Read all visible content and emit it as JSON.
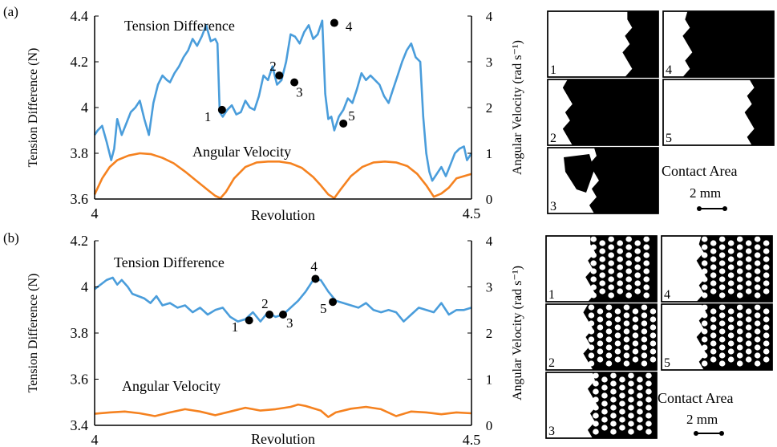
{
  "colors": {
    "tension": "#4a9ddb",
    "angular": "#f58220",
    "axis": "#000000",
    "marker": "#000000"
  },
  "panels": [
    {
      "label": "(a)",
      "xlabel": "Revolution",
      "ylabel_left": "Tension Difference (N)",
      "ylabel_right": "Angular Velocity (rad s⁻¹)",
      "xticks": [
        "4",
        "4.5"
      ],
      "yticks_left": [
        "3.6",
        "3.8",
        "4",
        "4.2",
        "4.4"
      ],
      "yticks_right": [
        "0",
        "1",
        "2",
        "3",
        "4"
      ],
      "series_labels": {
        "tension": "Tension Difference",
        "angular": "Angular Velocity"
      },
      "contact_area_title": "Contact Area",
      "scale_bar": "2 mm",
      "thumb_pattern": "solid"
    },
    {
      "label": "(b)",
      "xlabel": "Revolution",
      "ylabel_left": "Tension Difference (N)",
      "ylabel_right": "Angular Velocity (rad s⁻¹)",
      "xticks": [
        "4",
        "4.5"
      ],
      "yticks_left": [
        "3.4",
        "3.6",
        "3.8",
        "4",
        "4.2"
      ],
      "yticks_right": [
        "0",
        "1",
        "2",
        "3",
        "4"
      ],
      "series_labels": {
        "tension": "Tension Difference",
        "angular": "Angular Velocity"
      },
      "contact_area_title": "Contact Area",
      "scale_bar": "2 mm",
      "thumb_pattern": "hex"
    }
  ],
  "chart_data": [
    {
      "type": "line",
      "xlim": [
        4,
        4.5
      ],
      "ylim_left": [
        3.6,
        4.4
      ],
      "ylim_right": [
        0,
        4
      ],
      "series": [
        {
          "name": "Tension Difference",
          "axis": "left",
          "x": [
            4.0,
            4.004,
            4.01,
            4.016,
            4.022,
            4.026,
            4.03,
            4.036,
            4.042,
            4.048,
            4.054,
            4.06,
            4.066,
            4.072,
            4.078,
            4.084,
            4.09,
            4.096,
            4.1,
            4.106,
            4.112,
            4.118,
            4.124,
            4.13,
            4.136,
            4.142,
            4.148,
            4.154,
            4.16,
            4.163,
            4.166,
            4.17,
            4.176,
            4.182,
            4.188,
            4.194,
            4.2,
            4.206,
            4.212,
            4.218,
            4.224,
            4.23,
            4.236,
            4.242,
            4.248,
            4.254,
            4.26,
            4.266,
            4.272,
            4.278,
            4.284,
            4.29,
            4.296,
            4.302,
            4.306,
            4.31,
            4.314,
            4.318,
            4.324,
            4.33,
            4.336,
            4.342,
            4.348,
            4.354,
            4.36,
            4.366,
            4.372,
            4.378,
            4.384,
            4.39,
            4.396,
            4.402,
            4.408,
            4.414,
            4.42,
            4.426,
            4.432,
            4.436,
            4.44,
            4.444,
            4.448,
            4.452,
            4.456,
            4.46,
            4.466,
            4.472,
            4.478,
            4.484,
            4.49,
            4.494,
            4.5
          ],
          "y": [
            3.88,
            3.9,
            3.92,
            3.85,
            3.77,
            3.82,
            3.95,
            3.88,
            3.93,
            3.98,
            4.0,
            4.03,
            3.95,
            3.88,
            4.02,
            4.1,
            4.14,
            4.12,
            4.11,
            4.15,
            4.18,
            4.22,
            4.25,
            4.3,
            4.27,
            4.31,
            4.36,
            4.29,
            4.3,
            4.28,
            3.98,
            3.96,
            3.99,
            4.01,
            3.97,
            3.98,
            4.03,
            4.0,
            3.99,
            4.05,
            4.14,
            4.12,
            4.18,
            4.1,
            4.12,
            4.2,
            4.32,
            4.31,
            4.28,
            4.33,
            4.36,
            4.3,
            4.32,
            4.38,
            4.06,
            3.95,
            3.96,
            3.9,
            3.96,
            3.99,
            4.04,
            4.02,
            4.08,
            4.15,
            4.12,
            4.14,
            4.12,
            4.1,
            4.05,
            4.02,
            4.08,
            4.14,
            4.2,
            4.25,
            4.28,
            4.22,
            4.2,
            3.96,
            3.8,
            3.72,
            3.68,
            3.7,
            3.72,
            3.74,
            3.7,
            3.75,
            3.8,
            3.82,
            3.83,
            3.77,
            3.8
          ]
        },
        {
          "name": "Angular Velocity",
          "axis": "right",
          "x": [
            4.0,
            4.01,
            4.02,
            4.03,
            4.045,
            4.06,
            4.075,
            4.09,
            4.105,
            4.12,
            4.135,
            4.15,
            4.16,
            4.167,
            4.174,
            4.185,
            4.2,
            4.215,
            4.23,
            4.245,
            4.26,
            4.275,
            4.29,
            4.3,
            4.31,
            4.318,
            4.326,
            4.34,
            4.355,
            4.37,
            4.385,
            4.4,
            4.415,
            4.428,
            4.44,
            4.45,
            4.46,
            4.47,
            4.48,
            4.49,
            4.5
          ],
          "y": [
            0.1,
            0.45,
            0.7,
            0.85,
            0.95,
            1.0,
            0.98,
            0.9,
            0.78,
            0.6,
            0.4,
            0.2,
            0.07,
            0.02,
            0.15,
            0.45,
            0.7,
            0.8,
            0.82,
            0.82,
            0.78,
            0.68,
            0.48,
            0.3,
            0.1,
            0.02,
            0.2,
            0.5,
            0.7,
            0.8,
            0.82,
            0.8,
            0.72,
            0.55,
            0.3,
            0.05,
            0.12,
            0.25,
            0.45,
            0.5,
            0.55
          ]
        }
      ],
      "markers": [
        {
          "label": "1",
          "x": 4.169,
          "y": 3.99
        },
        {
          "label": "2",
          "x": 4.245,
          "y": 4.14
        },
        {
          "label": "3",
          "x": 4.265,
          "y": 4.11
        },
        {
          "label": "4",
          "x": 4.318,
          "y": 4.37
        },
        {
          "label": "5",
          "x": 4.33,
          "y": 3.93
        }
      ]
    },
    {
      "type": "line",
      "xlim": [
        4,
        4.5
      ],
      "ylim_left": [
        3.4,
        4.2
      ],
      "ylim_right": [
        0,
        4
      ],
      "series": [
        {
          "name": "Tension Difference",
          "axis": "left",
          "x": [
            4.0,
            4.008,
            4.016,
            4.024,
            4.03,
            4.036,
            4.044,
            4.05,
            4.058,
            4.066,
            4.074,
            4.082,
            4.09,
            4.1,
            4.11,
            4.12,
            4.13,
            4.14,
            4.15,
            4.16,
            4.17,
            4.18,
            4.19,
            4.2,
            4.21,
            4.22,
            4.23,
            4.24,
            4.25,
            4.26,
            4.27,
            4.28,
            4.29,
            4.3,
            4.31,
            4.32,
            4.33,
            4.34,
            4.35,
            4.36,
            4.37,
            4.38,
            4.39,
            4.4,
            4.41,
            4.42,
            4.43,
            4.44,
            4.45,
            4.46,
            4.47,
            4.48,
            4.49,
            4.5
          ],
          "y": [
            3.99,
            4.01,
            4.03,
            4.04,
            4.01,
            4.03,
            4.0,
            3.97,
            3.96,
            3.95,
            3.93,
            3.96,
            3.92,
            3.93,
            3.91,
            3.92,
            3.89,
            3.91,
            3.88,
            3.9,
            3.91,
            3.87,
            3.85,
            3.86,
            3.89,
            3.85,
            3.89,
            3.87,
            3.88,
            3.91,
            3.94,
            3.98,
            4.03,
            4.03,
            3.98,
            3.94,
            3.93,
            3.92,
            3.91,
            3.93,
            3.9,
            3.89,
            3.9,
            3.89,
            3.85,
            3.88,
            3.91,
            3.9,
            3.89,
            3.93,
            3.88,
            3.9,
            3.9,
            3.91
          ]
        },
        {
          "name": "Angular Velocity",
          "axis": "right",
          "x": [
            4.0,
            4.02,
            4.04,
            4.06,
            4.08,
            4.1,
            4.12,
            4.14,
            4.16,
            4.18,
            4.2,
            4.22,
            4.24,
            4.26,
            4.27,
            4.28,
            4.3,
            4.31,
            4.32,
            4.34,
            4.36,
            4.38,
            4.4,
            4.42,
            4.44,
            4.46,
            4.48,
            4.5
          ],
          "y": [
            0.25,
            0.28,
            0.3,
            0.26,
            0.2,
            0.28,
            0.35,
            0.3,
            0.22,
            0.3,
            0.38,
            0.32,
            0.35,
            0.4,
            0.45,
            0.42,
            0.32,
            0.18,
            0.28,
            0.36,
            0.4,
            0.35,
            0.2,
            0.3,
            0.28,
            0.24,
            0.28,
            0.26
          ]
        }
      ],
      "markers": [
        {
          "label": "1",
          "x": 4.205,
          "y": 3.855
        },
        {
          "label": "2",
          "x": 4.232,
          "y": 3.88
        },
        {
          "label": "3",
          "x": 4.25,
          "y": 3.88
        },
        {
          "label": "4",
          "x": 4.293,
          "y": 4.035
        },
        {
          "label": "5",
          "x": 4.316,
          "y": 3.935
        }
      ]
    }
  ]
}
